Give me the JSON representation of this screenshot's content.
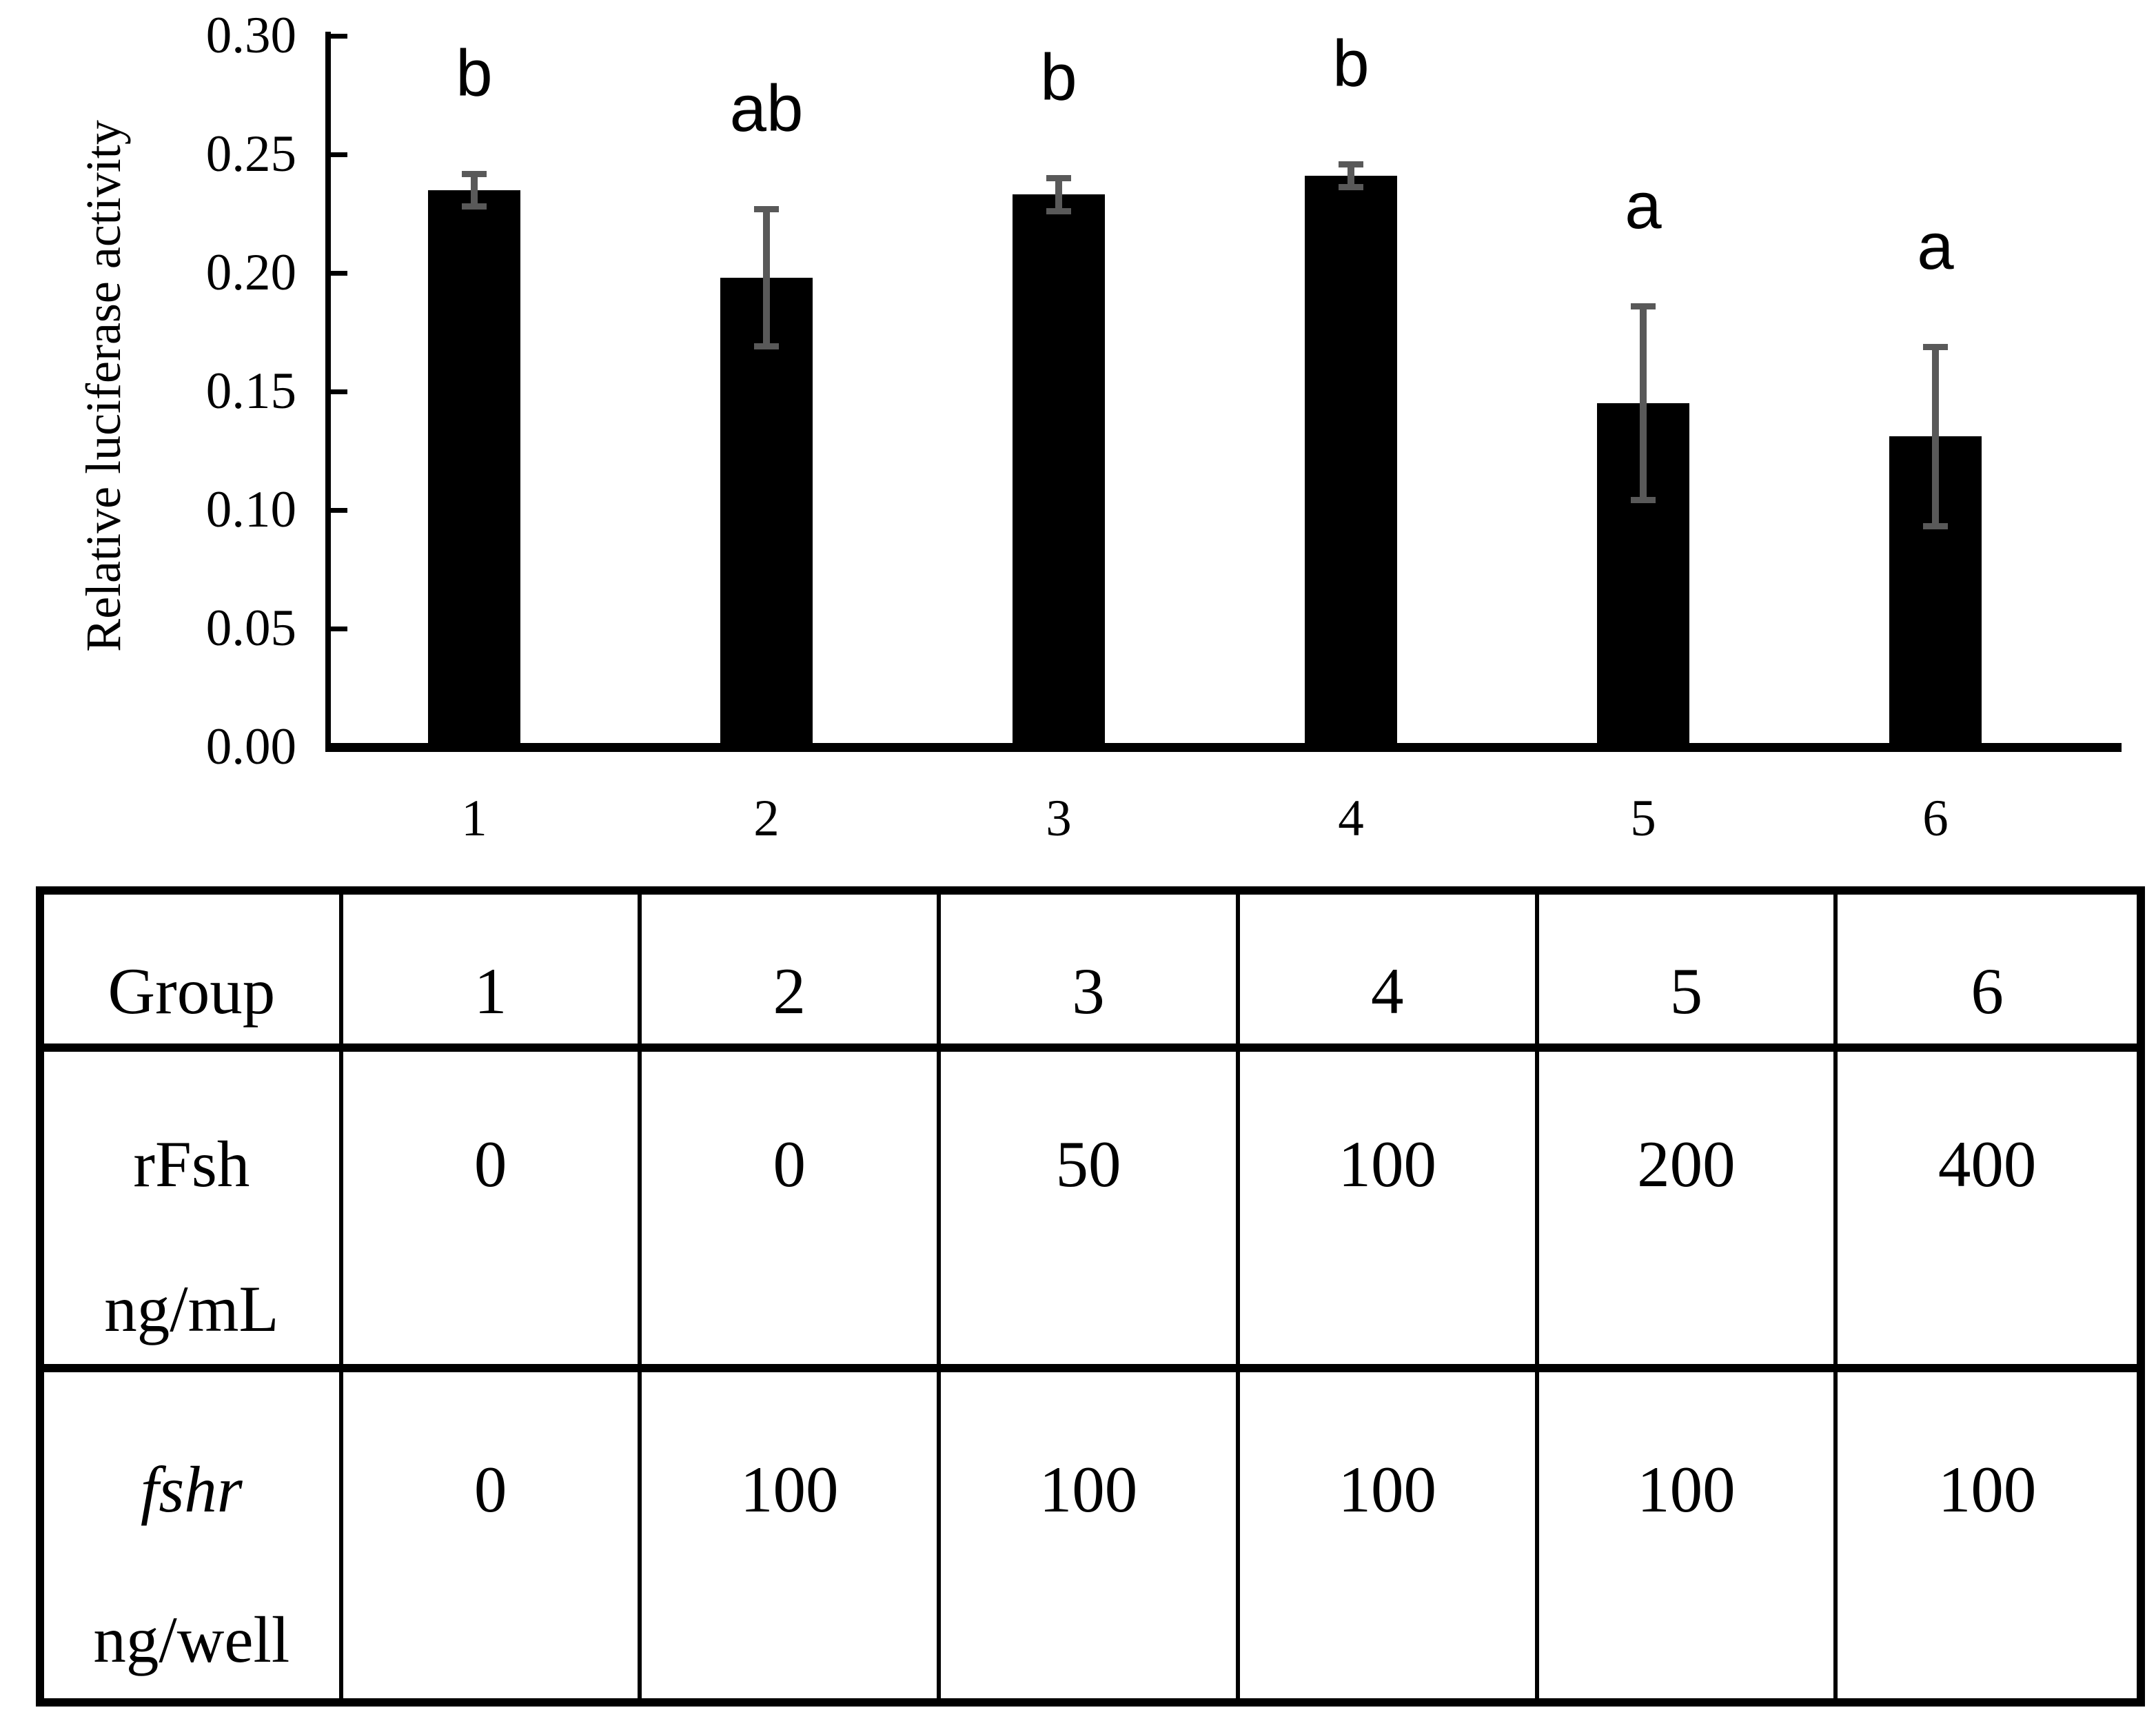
{
  "chart_data": {
    "type": "bar",
    "title": "",
    "xlabel": "",
    "ylabel": "Relative luciferase activity",
    "ylim": [
      0.0,
      0.3
    ],
    "ytick_values": [
      0.3,
      0.25,
      0.2,
      0.15,
      0.1,
      0.05,
      0.0
    ],
    "ytick_labels": [
      "0.30",
      "0.25",
      "0.20",
      "0.15",
      "0.10",
      "0.05",
      "0.00"
    ],
    "categories": [
      "1",
      "2",
      "3",
      "4",
      "5",
      "6"
    ],
    "series": [
      {
        "name": "Relative luciferase activity",
        "values": [
          0.235,
          0.198,
          0.233,
          0.241,
          0.145,
          0.131
        ],
        "errors": [
          0.007,
          0.029,
          0.007,
          0.005,
          0.041,
          0.038
        ]
      }
    ],
    "sig_letters": [
      "b",
      "ab",
      "b",
      "b",
      "a",
      "a"
    ],
    "bar_color": "#000000",
    "error_bar_color": "#595959",
    "grid": "off",
    "legend": "none"
  },
  "table": {
    "rows": [
      {
        "label_line1": "Group",
        "label_line2": "",
        "label_line1_italic": false,
        "values": [
          "1",
          "2",
          "3",
          "4",
          "5",
          "6"
        ]
      },
      {
        "label_line1": "rFsh",
        "label_line2": "ng/mL",
        "label_line1_italic": false,
        "values": [
          "0",
          "0",
          "50",
          "100",
          "200",
          "400"
        ]
      },
      {
        "label_line1": "fshr",
        "label_line2": "ng/well",
        "label_line1_italic": true,
        "values": [
          "0",
          "100",
          "100",
          "100",
          "100",
          "100"
        ]
      }
    ]
  }
}
